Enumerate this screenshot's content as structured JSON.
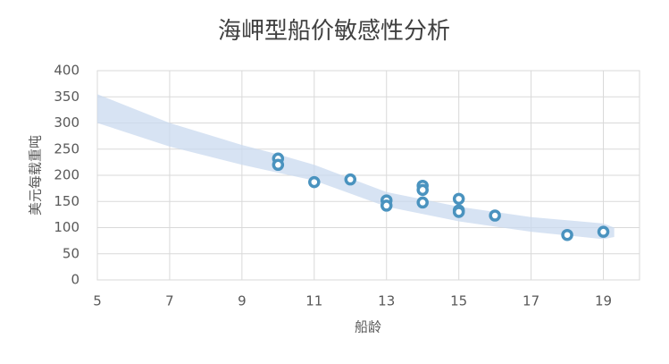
{
  "chart_data": {
    "type": "scatter",
    "title": "海岬型船价敏感性分析",
    "x_label": "船龄",
    "y_label": "美元每载重吨",
    "x": [
      10,
      10,
      11,
      12,
      13,
      13,
      14,
      14,
      14,
      15,
      15,
      15,
      16,
      18,
      19
    ],
    "values": [
      232,
      220,
      187,
      192,
      152,
      142,
      180,
      172,
      148,
      155,
      133,
      130,
      123,
      86,
      92
    ],
    "color": "#4a93bf",
    "band": {
      "color": "#c9d9ef",
      "x": [
        5,
        7,
        9,
        10,
        11,
        13,
        15,
        17,
        19,
        19.3
      ],
      "upper": [
        355,
        300,
        258,
        240,
        220,
        168,
        140,
        120,
        108,
        100
      ],
      "lower": [
        300,
        255,
        220,
        205,
        190,
        140,
        112,
        92,
        78,
        82
      ]
    },
    "xlim": [
      5,
      20
    ],
    "xticks": [
      5,
      7,
      9,
      11,
      13,
      15,
      17,
      19
    ],
    "ylim": [
      0,
      400
    ],
    "yticks": [
      0,
      50,
      100,
      150,
      200,
      250,
      300,
      350,
      400
    ],
    "grid": true
  }
}
